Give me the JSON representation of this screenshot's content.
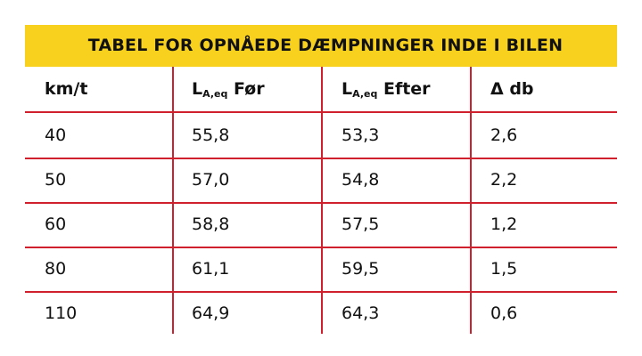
{
  "header": {
    "title": "TABEL FOR OPNÅEDE DÆMPNINGER INDE I BILEN"
  },
  "table": {
    "columns": [
      {
        "text": "km/t"
      },
      {
        "text": "L",
        "sub": "A,eq",
        "after": "Før"
      },
      {
        "text": "L",
        "sub": "A,eq",
        "after": "Efter"
      },
      {
        "text": "Δ db"
      }
    ],
    "rows": [
      [
        "40",
        "55,8",
        "53,3",
        "2,6"
      ],
      [
        "50",
        "57,0",
        "54,8",
        "2,2"
      ],
      [
        "60",
        "58,8",
        "57,5",
        "1,2"
      ],
      [
        "80",
        "61,1",
        "59,5",
        "1,5"
      ],
      [
        "110",
        "64,9",
        "64,3",
        "0,6"
      ]
    ]
  }
}
